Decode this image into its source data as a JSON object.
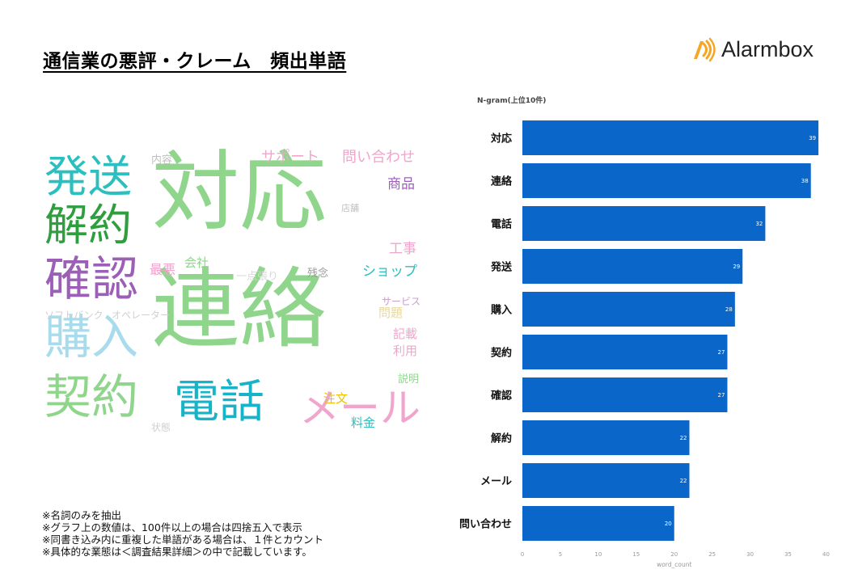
{
  "header": {
    "title": "通信業の悪評・クレーム　頻出単語",
    "logo_text": "Alarmbox",
    "logo_color": "#f5a623"
  },
  "wordcloud": {
    "words": [
      {
        "text": "対応",
        "color": "#8fd68c"
      },
      {
        "text": "連絡",
        "color": "#8fd68c"
      },
      {
        "text": "発送",
        "color": "#2bbfbf"
      },
      {
        "text": "解約",
        "color": "#2e9e3e"
      },
      {
        "text": "確認",
        "color": "#9b5fb8"
      },
      {
        "text": "購入",
        "color": "#a8dced"
      },
      {
        "text": "契約",
        "color": "#8fd68c"
      },
      {
        "text": "電話",
        "color": "#17b3c8"
      },
      {
        "text": "メール",
        "color": "#f0a6cc"
      },
      {
        "text": "サポート",
        "color": "#f0a6cc"
      },
      {
        "text": "問い合わせ",
        "color": "#f0a6cc"
      },
      {
        "text": "内容",
        "color": "#c0c0c0"
      },
      {
        "text": "商品",
        "color": "#9b5fb8"
      },
      {
        "text": "店舗",
        "color": "#c0c0c0"
      },
      {
        "text": "工事",
        "color": "#f0a6cc"
      },
      {
        "text": "最悪",
        "color": "#f0a6cc"
      },
      {
        "text": "会社",
        "color": "#8fd68c"
      },
      {
        "text": "一点張り",
        "color": "#d8d8d8"
      },
      {
        "text": "残念",
        "color": "#999999"
      },
      {
        "text": "ショップ",
        "color": "#2bbfbf"
      },
      {
        "text": "サービス",
        "color": "#c9a0c9"
      },
      {
        "text": "問題",
        "color": "#e8d8a0"
      },
      {
        "text": "ソフトバンク",
        "color": "#d0d0d0"
      },
      {
        "text": "オペレーター",
        "color": "#d0d0d0"
      },
      {
        "text": "記載",
        "color": "#f0a6cc"
      },
      {
        "text": "利用",
        "color": "#f0a6cc"
      },
      {
        "text": "説明",
        "color": "#8fd68c"
      },
      {
        "text": "注文",
        "color": "#f0c000"
      },
      {
        "text": "料金",
        "color": "#2bbfbf"
      },
      {
        "text": "状態",
        "color": "#d0d0d0"
      }
    ]
  },
  "notes": [
    "※名詞のみを抽出",
    "※グラフ上の数値は、100件以上の場合は四捨五入で表示",
    "※同書き込み内に重複した単語がある場合は、１件とカウント",
    "※具体的な業態は＜調査結果詳細＞の中で記載しています。"
  ],
  "chart_data": {
    "type": "bar",
    "orientation": "horizontal",
    "title": "N-gram(上位10件)",
    "xlabel": "word_count",
    "ylabel": "",
    "categories": [
      "対応",
      "連絡",
      "電話",
      "発送",
      "購入",
      "契約",
      "確認",
      "解約",
      "メール",
      "問い合わせ"
    ],
    "values": [
      39,
      38,
      32,
      29,
      28,
      27,
      27,
      22,
      22,
      20
    ],
    "xlim": [
      0,
      40
    ],
    "xticks": [
      0,
      5,
      10,
      15,
      20,
      25,
      30,
      35,
      40
    ],
    "bar_color": "#0a66c8",
    "grid": false
  }
}
